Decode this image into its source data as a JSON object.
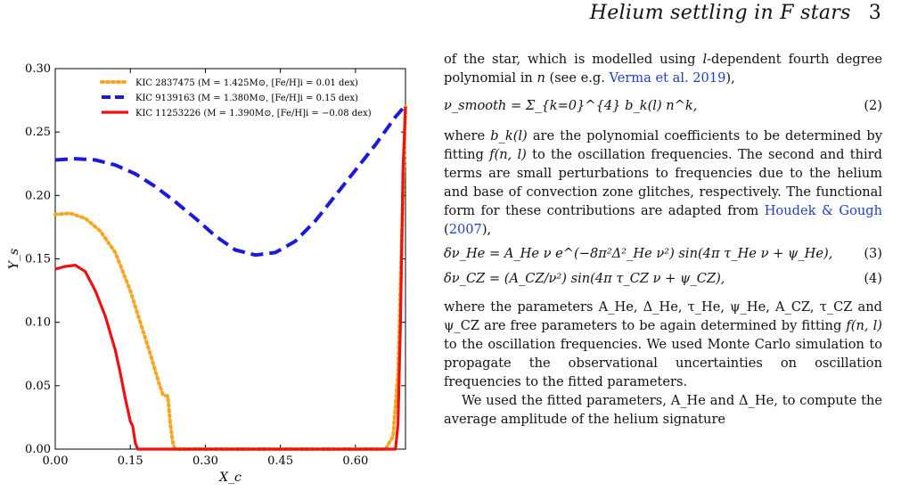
{
  "header": {
    "running_title": "Helium settling in F stars",
    "page_number": "3"
  },
  "chart_data": {
    "type": "line",
    "xlabel": "X_c",
    "ylabel": "Y_s",
    "xlim": [
      0.0,
      0.7
    ],
    "ylim": [
      0.0,
      0.3
    ],
    "xticks": [
      "0.00",
      "0.15",
      "0.30",
      "0.45",
      "0.60"
    ],
    "xtick_values": [
      0.0,
      0.15,
      0.3,
      0.45,
      0.6
    ],
    "yticks": [
      "0.00",
      "0.05",
      "0.10",
      "0.15",
      "0.20",
      "0.25",
      "0.30"
    ],
    "ytick_values": [
      0.0,
      0.05,
      0.1,
      0.15,
      0.2,
      0.25,
      0.3
    ],
    "legend_position": "top-center",
    "series": [
      {
        "name": "KIC 2837475 (M = 1.425M⊙, [Fe/H]i = 0.01 dex)",
        "color": "#f5a623",
        "style": "dotted",
        "x": [
          0.0,
          0.03,
          0.06,
          0.09,
          0.12,
          0.15,
          0.17,
          0.19,
          0.205,
          0.215,
          0.22,
          0.225,
          0.23,
          0.235,
          0.24,
          0.66,
          0.675,
          0.685,
          0.695,
          0.7
        ],
        "y": [
          0.185,
          0.186,
          0.182,
          0.172,
          0.155,
          0.125,
          0.1,
          0.075,
          0.055,
          0.043,
          0.042,
          0.042,
          0.02,
          0.005,
          0.0,
          0.0,
          0.01,
          0.06,
          0.2,
          0.27
        ]
      },
      {
        "name": "KIC 9139163 (M = 1.380M⊙, [Fe/H]i = 0.15 dex)",
        "color": "#1a1adb",
        "style": "dashed",
        "x": [
          0.0,
          0.04,
          0.08,
          0.12,
          0.16,
          0.2,
          0.24,
          0.28,
          0.32,
          0.36,
          0.4,
          0.44,
          0.48,
          0.52,
          0.56,
          0.6,
          0.64,
          0.68,
          0.7
        ],
        "y": [
          0.228,
          0.229,
          0.228,
          0.224,
          0.217,
          0.207,
          0.195,
          0.182,
          0.168,
          0.157,
          0.153,
          0.155,
          0.164,
          0.18,
          0.2,
          0.22,
          0.24,
          0.262,
          0.271
        ]
      },
      {
        "name": "KIC 11253226 (M = 1.390M⊙, [Fe/H]i = −0.08 dex)",
        "color": "#ee1111",
        "style": "solid",
        "x": [
          0.0,
          0.02,
          0.04,
          0.06,
          0.08,
          0.1,
          0.12,
          0.13,
          0.14,
          0.15,
          0.155,
          0.16,
          0.165,
          0.17,
          0.68,
          0.685,
          0.69,
          0.695,
          0.7
        ],
        "y": [
          0.142,
          0.144,
          0.145,
          0.14,
          0.125,
          0.105,
          0.078,
          0.06,
          0.04,
          0.022,
          0.018,
          0.005,
          0.0,
          0.0,
          0.0,
          0.02,
          0.1,
          0.22,
          0.27
        ]
      }
    ]
  },
  "text": {
    "p1_a": "of the star, which is modelled using ",
    "p1_var": "l",
    "p1_b": "-dependent fourth degree polynomial in ",
    "p1_n": "n",
    "p1_c": " (see e.g. ",
    "p1_link": "Verma et al. 2019",
    "p1_d": "),",
    "eq2": "ν_smooth = Σ_{k=0}^{4} b_k(l) n^k,",
    "eq2_num": "(2)",
    "p2_a": "where ",
    "p2_bk": "b_k(l)",
    "p2_b": " are the polynomial coefficients to be determined by fitting ",
    "p2_f": "f(n, l)",
    "p2_c": " to the oscillation frequencies. The second and third terms are small perturbations to frequencies due to the helium and base of convection zone glitches, respectively. The functional form for these contributions are adapted from ",
    "p2_link1": "Houdek & Gough",
    "p2_d": " (",
    "p2_link2": "2007",
    "p2_e": "),",
    "eq3": "δν_He = A_He ν e^(−8π²Δ²_He ν²) sin(4π τ_He ν + ψ_He),",
    "eq3_num": "(3)",
    "eq4": "δν_CZ = (A_CZ/ν²) sin(4π τ_CZ ν + ψ_CZ),",
    "eq4_num": "(4)",
    "p3_a": "where the parameters A_He, Δ_He, τ_He, ψ_He, A_CZ, τ_CZ and ψ_CZ are free parameters to be again determined by fitting ",
    "p3_f": "f(n, l)",
    "p3_b": " to the oscillation frequencies. We used Monte Carlo simulation to propagate the observational uncertainties on oscillation frequencies to the fitted parameters.",
    "p4": "We used the fitted parameters, A_He and Δ_He, to compute the average amplitude of the helium signature"
  }
}
